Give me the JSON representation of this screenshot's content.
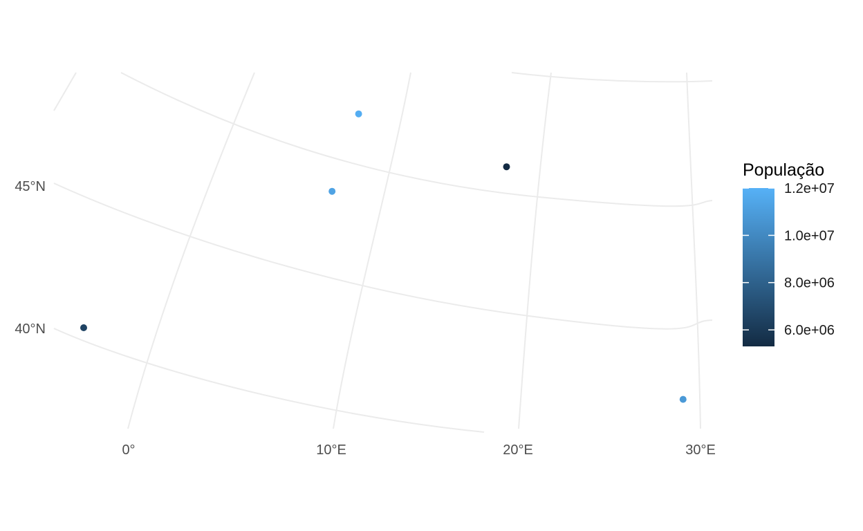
{
  "chart_data": {
    "type": "scatter",
    "title": "",
    "xlabel": "",
    "ylabel": "",
    "projection": "conic graticule (curved parallels and meridians)",
    "grid": true,
    "x_ticks": [
      "0°",
      "10°E",
      "20°E",
      "30°E"
    ],
    "y_ticks": [
      "40°N",
      "45°N"
    ],
    "legend": {
      "title": "População",
      "type": "continuous color bar",
      "placement": "right",
      "labels": [
        "1.2e+07",
        "1.0e+07",
        "8.0e+06",
        "6.0e+06"
      ],
      "label_values": [
        12000000,
        10000000,
        8000000,
        6000000
      ],
      "range": [
        5300000,
        12000000
      ],
      "low_color": "#132b43",
      "high_color": "#56b1f7"
    },
    "points": [
      {
        "lon": 5.6,
        "lat": 48.9,
        "population": 11800000
      },
      {
        "lon": 6.4,
        "lat": 46.2,
        "population": 11300000
      },
      {
        "lon": 16.4,
        "lat": 48.2,
        "population": 5300000
      },
      {
        "lon": -2.3,
        "lat": 40.4,
        "population": 6500000
      },
      {
        "lon": 28.9,
        "lat": 41.0,
        "population": 10800000
      }
    ]
  }
}
